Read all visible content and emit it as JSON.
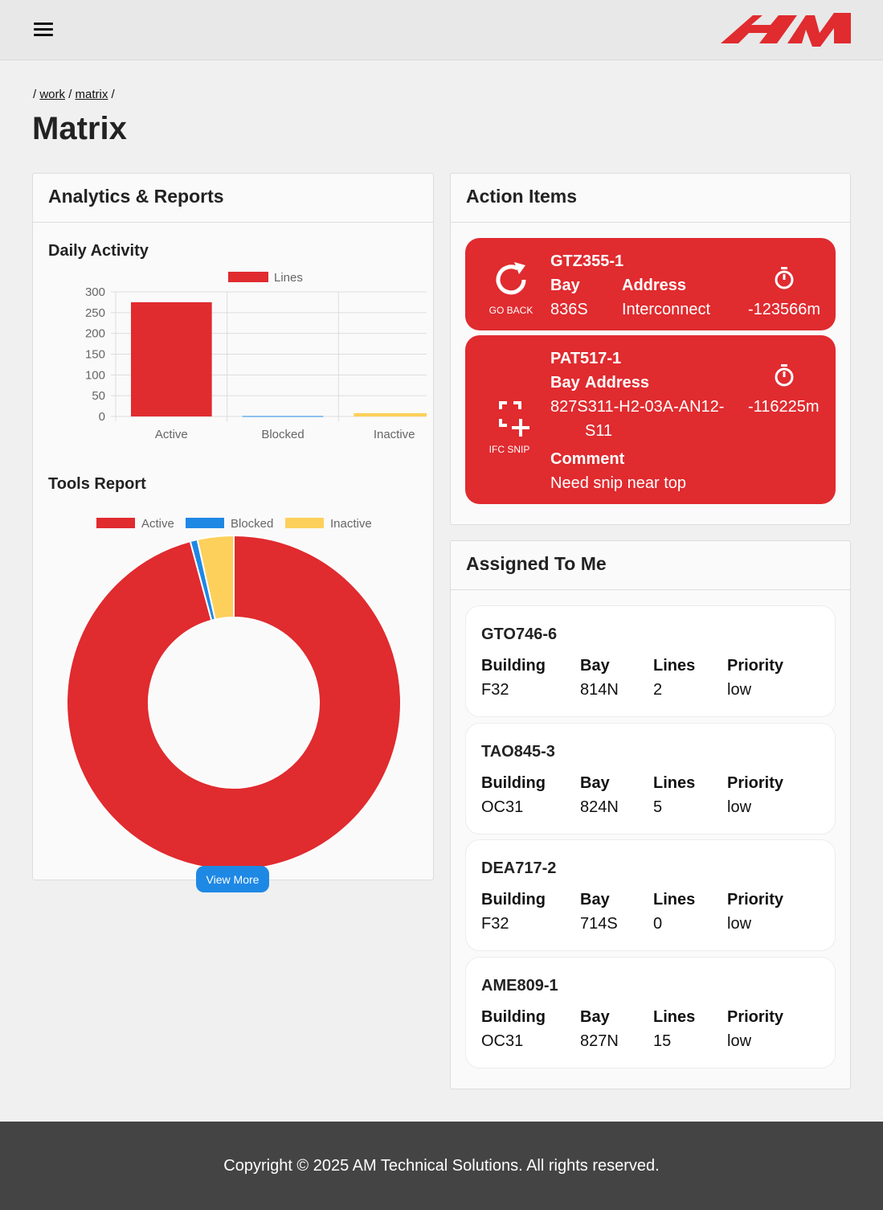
{
  "header": {
    "menu_icon": "hamburger-menu-icon",
    "logo": "am-logo",
    "brand_color": "#e02b2f"
  },
  "breadcrumb": {
    "sep": "/",
    "items": [
      "work",
      "matrix"
    ]
  },
  "page": {
    "title": "Matrix"
  },
  "analytics": {
    "title": "Analytics & Reports",
    "daily_title": "Daily Activity",
    "tools_title": "Tools Report",
    "view_more": "View More"
  },
  "chart_data": [
    {
      "type": "bar",
      "title": "Daily Activity",
      "categories": [
        "Active",
        "Blocked",
        "Inactive"
      ],
      "series": [
        {
          "name": "Lines",
          "values": [
            275,
            1,
            8
          ],
          "colors": [
            "#e02b2f",
            "#1e88e5",
            "#fdd05b"
          ]
        }
      ],
      "ylim": [
        0,
        300
      ],
      "yticks": [
        "300",
        "250",
        "200",
        "150",
        "100",
        "50",
        "0"
      ],
      "grid": true,
      "legend": "top"
    },
    {
      "type": "pie",
      "title": "Tools Report",
      "labels": [
        "Active",
        "Blocked",
        "Inactive"
      ],
      "values": [
        95.8,
        0.7,
        3.5
      ],
      "colors": [
        "#e02b2f",
        "#1e88e5",
        "#fdd05b"
      ],
      "donut": true,
      "legend": "top"
    }
  ],
  "actions": {
    "title": "Action Items",
    "items": [
      {
        "code": "GTZ355-1",
        "icon": "refresh-icon",
        "icon_label": "GO BACK",
        "bay_label": "Bay",
        "bay": "836S",
        "address_label": "Address",
        "address": "Interconnect",
        "timer": "-123566m"
      },
      {
        "code": "PAT517-1",
        "icon": "snip-icon",
        "icon_label": "IFC SNIP",
        "bay_label": "Bay",
        "address_label": "Address",
        "address_line1": "827S311-H2-03A-AN12-",
        "address_line2": "S11",
        "comment_label": "Comment",
        "comment": "Need snip near top",
        "timer": "-116225m"
      }
    ]
  },
  "assigned": {
    "title": "Assigned To Me",
    "headers": {
      "building": "Building",
      "bay": "Bay",
      "lines": "Lines",
      "priority": "Priority"
    },
    "items": [
      {
        "code": "GTO746-6",
        "building": "F32",
        "bay": "814N",
        "lines": "2",
        "priority": "low"
      },
      {
        "code": "TAO845-3",
        "building": "OC31",
        "bay": "824N",
        "lines": "5",
        "priority": "low"
      },
      {
        "code": "DEA717-2",
        "building": "F32",
        "bay": "714S",
        "lines": "0",
        "priority": "low"
      },
      {
        "code": "AME809-1",
        "building": "OC31",
        "bay": "827N",
        "lines": "15",
        "priority": "low"
      }
    ]
  },
  "footer": {
    "text": "Copyright © 2025 AM Technical Solutions. All rights reserved."
  }
}
